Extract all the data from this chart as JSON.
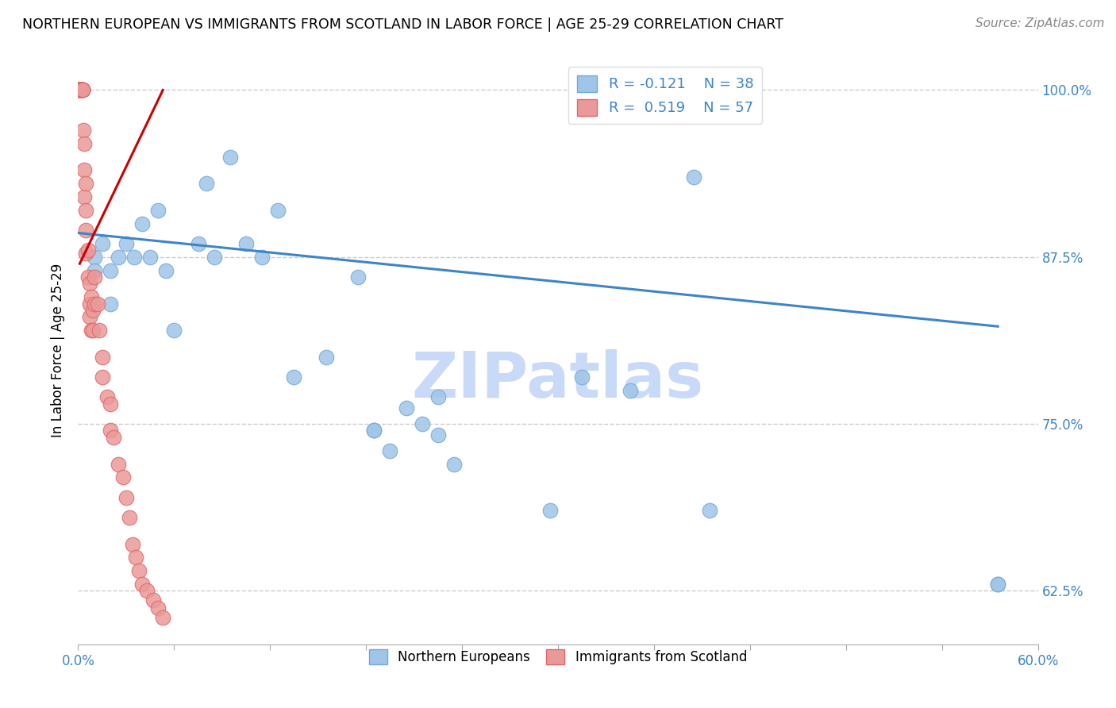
{
  "title": "NORTHERN EUROPEAN VS IMMIGRANTS FROM SCOTLAND IN LABOR FORCE | AGE 25-29 CORRELATION CHART",
  "source": "Source: ZipAtlas.com",
  "ylabel": "In Labor Force | Age 25-29",
  "xlim": [
    0.0,
    0.6
  ],
  "ylim": [
    0.585,
    1.025
  ],
  "xticks": [
    0.0,
    0.06,
    0.12,
    0.18,
    0.24,
    0.3,
    0.36,
    0.42,
    0.48,
    0.54,
    0.6
  ],
  "xticklabels_show": [
    "0.0%",
    "",
    "",
    "",
    "",
    "",
    "",
    "",
    "",
    "",
    "60.0%"
  ],
  "yticks": [
    0.625,
    0.75,
    0.875,
    1.0
  ],
  "yticklabels": [
    "62.5%",
    "75.0%",
    "87.5%",
    "100.0%"
  ],
  "blue_color": "#9fc5e8",
  "pink_color": "#ea9999",
  "blue_edge_color": "#6fa8dc",
  "pink_edge_color": "#e06666",
  "blue_line_color": "#3d85c8",
  "pink_line_color": "#cc0000",
  "tick_label_color": "#3d85c8",
  "legend_R_blue": "-0.121",
  "legend_N_blue": "38",
  "legend_R_pink": "0.519",
  "legend_N_pink": "57",
  "watermark": "ZIPatlas",
  "watermark_color": "#c9daf8",
  "grid_color": "#cccccc",
  "blue_scatter_x": [
    0.01,
    0.01,
    0.015,
    0.02,
    0.02,
    0.025,
    0.03,
    0.035,
    0.04,
    0.045,
    0.05,
    0.055,
    0.06,
    0.075,
    0.08,
    0.085,
    0.095,
    0.105,
    0.115,
    0.125,
    0.135,
    0.155,
    0.175,
    0.185,
    0.185,
    0.195,
    0.205,
    0.215,
    0.225,
    0.225,
    0.235,
    0.295,
    0.315,
    0.345,
    0.385,
    0.395,
    0.575,
    0.575
  ],
  "blue_scatter_y": [
    0.875,
    0.865,
    0.885,
    0.865,
    0.84,
    0.875,
    0.885,
    0.875,
    0.9,
    0.875,
    0.91,
    0.865,
    0.82,
    0.885,
    0.93,
    0.875,
    0.95,
    0.885,
    0.875,
    0.91,
    0.785,
    0.8,
    0.86,
    0.745,
    0.745,
    0.73,
    0.762,
    0.75,
    0.77,
    0.742,
    0.72,
    0.685,
    0.785,
    0.775,
    0.935,
    0.685,
    0.63,
    0.63
  ],
  "pink_scatter_x": [
    0.001,
    0.001,
    0.001,
    0.001,
    0.001,
    0.001,
    0.0015,
    0.0015,
    0.002,
    0.002,
    0.002,
    0.002,
    0.0025,
    0.003,
    0.003,
    0.003,
    0.003,
    0.003,
    0.0035,
    0.004,
    0.004,
    0.004,
    0.005,
    0.005,
    0.005,
    0.005,
    0.006,
    0.006,
    0.007,
    0.007,
    0.007,
    0.008,
    0.008,
    0.009,
    0.009,
    0.01,
    0.01,
    0.012,
    0.013,
    0.015,
    0.015,
    0.018,
    0.02,
    0.02,
    0.022,
    0.025,
    0.028,
    0.03,
    0.032,
    0.034,
    0.036,
    0.038,
    0.04,
    0.043,
    0.047,
    0.05,
    0.053
  ],
  "pink_scatter_y": [
    1.0,
    1.0,
    1.0,
    1.0,
    1.0,
    1.0,
    1.0,
    1.0,
    1.0,
    1.0,
    1.0,
    1.0,
    1.0,
    1.0,
    1.0,
    1.0,
    1.0,
    1.0,
    0.97,
    0.96,
    0.94,
    0.92,
    0.93,
    0.91,
    0.895,
    0.878,
    0.88,
    0.86,
    0.855,
    0.84,
    0.83,
    0.845,
    0.82,
    0.835,
    0.82,
    0.86,
    0.84,
    0.84,
    0.82,
    0.8,
    0.785,
    0.77,
    0.765,
    0.745,
    0.74,
    0.72,
    0.71,
    0.695,
    0.68,
    0.66,
    0.65,
    0.64,
    0.63,
    0.625,
    0.618,
    0.612,
    0.605
  ],
  "blue_trendline_x": [
    0.0,
    0.575
  ],
  "blue_trendline_y": [
    0.893,
    0.823
  ],
  "pink_trendline_x": [
    0.001,
    0.053
  ],
  "pink_trendline_y": [
    0.87,
    1.0
  ]
}
